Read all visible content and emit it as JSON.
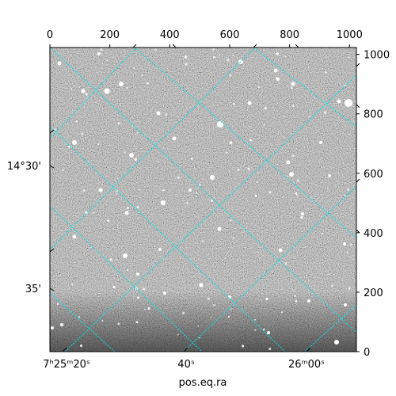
{
  "figure": {
    "pixel_axis_top": {
      "ticks": [
        {
          "value": 0,
          "label": "0"
        },
        {
          "value": 200,
          "label": "200"
        },
        {
          "value": 400,
          "label": "400"
        },
        {
          "value": 600,
          "label": "600"
        },
        {
          "value": 800,
          "label": "800"
        },
        {
          "value": 1000,
          "label": "1000"
        }
      ],
      "range": [
        0,
        1023
      ]
    },
    "pixel_axis_right": {
      "ticks": [
        {
          "value": 0,
          "label": "0"
        },
        {
          "value": 200,
          "label": "200"
        },
        {
          "value": 400,
          "label": "400"
        },
        {
          "value": 600,
          "label": "600"
        },
        {
          "value": 800,
          "label": "800"
        },
        {
          "value": 1000,
          "label": "1000"
        }
      ],
      "range": [
        0,
        1023
      ]
    },
    "world_axis_bottom": {
      "label": "pos.eq.ra",
      "ticks": [
        {
          "text": "7ʰ25ᵐ20ˢ"
        },
        {
          "text": "40ˢ"
        },
        {
          "text": "26ᵐ00ˢ"
        }
      ]
    },
    "world_axis_left": {
      "ticks": [
        {
          "text": "14°30'"
        },
        {
          "text": "35'"
        }
      ]
    },
    "grid_color": "#00e5e5",
    "image": {
      "colormap": "grayscale",
      "background": "noisy star field",
      "star_color": "#ffffff"
    }
  }
}
